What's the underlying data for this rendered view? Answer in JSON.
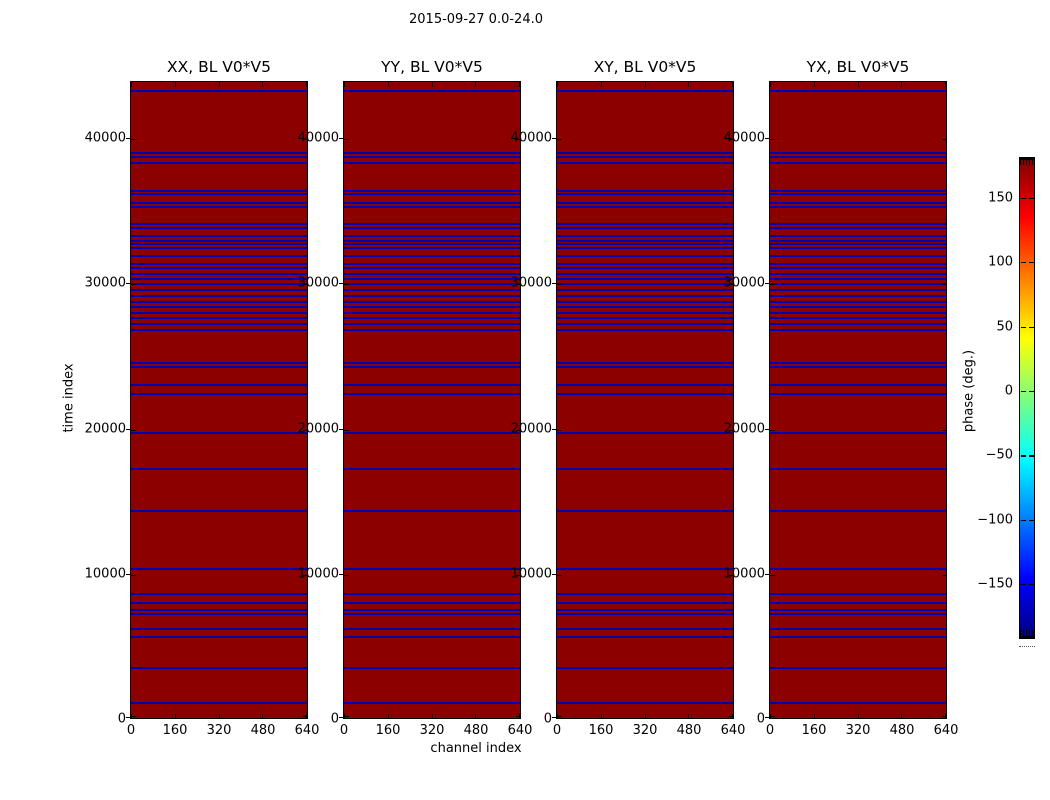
{
  "title": "2015-09-27 0.0-24.0",
  "chart_data": {
    "type": "heatmap",
    "description": "Four waterfall phase plots (time index vs channel index), uniform max-phase dark red field with horizontal blue flagged-time rows, identical in all four panels",
    "panels": [
      {
        "title": "XX, BL V0*V5"
      },
      {
        "title": "YY, BL V0*V5"
      },
      {
        "title": "XY, BL V0*V5"
      },
      {
        "title": "YX, BL V0*V5"
      }
    ],
    "xlabel": "channel index",
    "ylabel": "time index",
    "x_ticks": [
      0,
      160,
      320,
      480,
      640
    ],
    "y_ticks": [
      0,
      10000,
      20000,
      30000,
      40000
    ],
    "x_range": [
      0,
      640
    ],
    "y_range": [
      0,
      43920
    ],
    "value_color": "#8d0000",
    "flag_color": "#0000b2",
    "flagged_times": [
      1170,
      3580,
      5720,
      6270,
      7300,
      7570,
      8050,
      8670,
      10400,
      14390,
      17280,
      19760,
      22440,
      23060,
      24300,
      24580,
      26850,
      27260,
      27670,
      28020,
      28430,
      28780,
      29190,
      29600,
      30010,
      30360,
      30700,
      31120,
      31390,
      31940,
      32490,
      32770,
      32970,
      33320,
      33870,
      34140,
      35310,
      35590,
      36210,
      36420,
      38340,
      38760,
      39030,
      43300
    ],
    "colorbar": {
      "label": "phase (deg.)",
      "colormap": "jet",
      "range": [
        -180,
        180
      ],
      "tick_values": [
        150,
        100,
        50,
        0,
        -50,
        -100,
        -150
      ],
      "tick_labels": [
        "150",
        "100",
        "50",
        "0",
        "−50",
        "−100",
        "−150"
      ],
      "gradient": [
        "#00007f",
        "#0000ff",
        "#0080ff",
        "#00ffff",
        "#7dff7d",
        "#ffff00",
        "#ff7f00",
        "#ff0000",
        "#7f0000"
      ]
    }
  }
}
